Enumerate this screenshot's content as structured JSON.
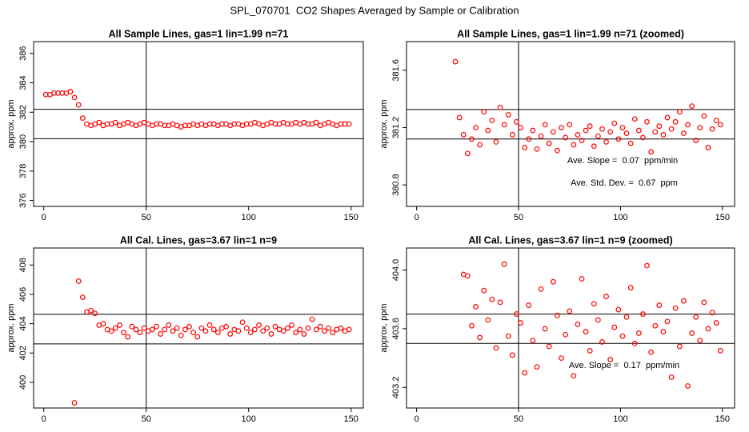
{
  "title": "SPL_070701  CO2 Shapes Averaged by Sample or Calibration",
  "chart_data": [
    {
      "type": "scatter",
      "title": "All Sample Lines, gas=1 lin=1.99 n=71",
      "y_label": "approx. ppm",
      "color": "#ff0000",
      "xlim": [
        -4.96,
        155.96
      ],
      "xticks": [
        0,
        50,
        100,
        150
      ],
      "ylim": [
        375.6,
        386.8
      ],
      "yticks": [
        376,
        378,
        380,
        382,
        384,
        386
      ],
      "vline": 50,
      "hlines": [
        382.2,
        380.2
      ],
      "annotations": [],
      "x": [
        1,
        3,
        5,
        7,
        9,
        11,
        13,
        15,
        17,
        19,
        21,
        23,
        25,
        27,
        29,
        31,
        33,
        35,
        37,
        39,
        41,
        43,
        45,
        47,
        49,
        51,
        53,
        55,
        57,
        59,
        61,
        63,
        65,
        67,
        69,
        71,
        73,
        75,
        77,
        79,
        81,
        83,
        85,
        87,
        89,
        91,
        93,
        95,
        97,
        99,
        101,
        103,
        105,
        107,
        109,
        111,
        113,
        115,
        117,
        119,
        121,
        123,
        125,
        127,
        129,
        131,
        133,
        135,
        137,
        139,
        141,
        143,
        145,
        147,
        149
      ],
      "values": [
        383.2,
        383.2,
        383.3,
        383.3,
        383.3,
        383.3,
        383.4,
        383.0,
        382.5,
        381.6,
        381.2,
        381.1,
        381.2,
        381.3,
        381.1,
        381.2,
        381.2,
        381.3,
        381.1,
        381.2,
        381.3,
        381.2,
        381.1,
        381.2,
        381.3,
        381.2,
        381.1,
        381.2,
        381.2,
        381.1,
        381.1,
        381.2,
        381.1,
        381.0,
        381.1,
        381.1,
        381.2,
        381.1,
        381.2,
        381.1,
        381.2,
        381.2,
        381.1,
        381.2,
        381.2,
        381.1,
        381.2,
        381.2,
        381.1,
        381.2,
        381.2,
        381.3,
        381.2,
        381.1,
        381.2,
        381.3,
        381.2,
        381.2,
        381.3,
        381.2,
        381.2,
        381.3,
        381.2,
        381.3,
        381.2,
        381.2,
        381.3,
        381.1,
        381.2,
        381.3,
        381.2,
        381.1,
        381.2,
        381.2,
        381.2
      ]
    },
    {
      "type": "scatter",
      "title": "All Sample Lines, gas=1 lin=1.99 n=71 (zoomed)",
      "y_label": "approx. ppm",
      "color": "#ff0000",
      "xlim": [
        -4.96,
        155.96
      ],
      "xticks": [
        0,
        50,
        100,
        150
      ],
      "ylim": [
        380.65,
        381.8
      ],
      "yticks": [
        380.8,
        381.2,
        381.6
      ],
      "vline": 50,
      "hlines": [
        381.326,
        381.12
      ],
      "annotations": [
        "Ave. Slope =  0.07  ppm/min",
        "Ave. Std. Dev. =  0.67  ppm"
      ],
      "x": [
        19,
        21,
        23,
        25,
        27,
        29,
        31,
        33,
        35,
        37,
        39,
        41,
        43,
        45,
        47,
        49,
        51,
        53,
        55,
        57,
        59,
        61,
        63,
        65,
        67,
        69,
        71,
        73,
        75,
        77,
        79,
        81,
        83,
        85,
        87,
        89,
        91,
        93,
        95,
        97,
        99,
        101,
        103,
        105,
        107,
        109,
        111,
        113,
        115,
        117,
        119,
        121,
        123,
        125,
        127,
        129,
        131,
        133,
        135,
        137,
        139,
        141,
        143,
        145,
        147,
        149
      ],
      "values": [
        381.66,
        381.27,
        381.15,
        381.02,
        381.12,
        381.2,
        381.08,
        381.31,
        381.18,
        381.25,
        381.1,
        381.34,
        381.22,
        381.29,
        381.15,
        381.24,
        381.2,
        381.06,
        381.12,
        381.18,
        381.05,
        381.14,
        381.22,
        381.09,
        381.17,
        381.04,
        381.2,
        381.13,
        381.22,
        381.08,
        381.15,
        381.11,
        381.18,
        381.21,
        381.07,
        381.14,
        381.19,
        381.1,
        381.17,
        381.23,
        381.12,
        381.2,
        381.16,
        381.09,
        381.26,
        381.18,
        381.13,
        381.24,
        381.03,
        381.17,
        381.21,
        381.15,
        381.27,
        381.19,
        381.24,
        381.31,
        381.16,
        381.22,
        381.35,
        381.11,
        381.2,
        381.28,
        381.06,
        381.19,
        381.25,
        381.22
      ]
    },
    {
      "type": "scatter",
      "title": "All Cal. Lines, gas=3.67 lin=1 n=9",
      "y_label": "approx. ppm",
      "color": "#ff0000",
      "xlim": [
        -4.96,
        155.96
      ],
      "xticks": [
        0,
        50,
        100,
        150
      ],
      "ylim": [
        398.25,
        409.16
      ],
      "yticks": [
        400,
        402,
        404,
        406,
        408
      ],
      "vline": 50,
      "hlines": [
        404.64,
        402.62
      ],
      "annotations": [],
      "x": [
        15,
        17,
        19,
        21,
        23,
        25,
        27,
        29,
        31,
        33,
        35,
        37,
        39,
        41,
        43,
        45,
        47,
        49,
        51,
        53,
        55,
        57,
        59,
        61,
        63,
        65,
        67,
        69,
        71,
        73,
        75,
        77,
        79,
        81,
        83,
        85,
        87,
        89,
        91,
        93,
        95,
        97,
        99,
        101,
        103,
        105,
        107,
        109,
        111,
        113,
        115,
        117,
        119,
        121,
        123,
        125,
        127,
        129,
        131,
        133,
        135,
        137,
        139,
        141,
        143,
        145,
        147,
        149
      ],
      "values": [
        398.6,
        406.9,
        405.8,
        404.8,
        404.9,
        404.7,
        403.9,
        404.0,
        403.6,
        403.5,
        403.7,
        403.9,
        403.4,
        403.1,
        403.8,
        403.6,
        403.4,
        403.7,
        403.5,
        403.6,
        403.8,
        403.3,
        403.6,
        403.9,
        403.5,
        403.7,
        403.2,
        403.6,
        403.8,
        403.4,
        403.1,
        403.7,
        403.5,
        403.9,
        403.6,
        403.4,
        403.7,
        403.8,
        403.3,
        403.6,
        403.5,
        404.1,
        403.7,
        403.4,
        403.6,
        403.9,
        403.5,
        403.7,
        403.3,
        403.8,
        403.6,
        403.5,
        403.7,
        403.9,
        403.4,
        403.6,
        403.3,
        403.7,
        404.3,
        403.6,
        403.8,
        403.5,
        403.7,
        403.4,
        403.6,
        403.7,
        403.5,
        403.6
      ]
    },
    {
      "type": "scatter",
      "title": "All Cal. Lines, gas=3.67 lin=1 n=9 (zoomed)",
      "y_label": "approx. ppm",
      "color": "#ff0000",
      "xlim": [
        -4.96,
        155.96
      ],
      "xticks": [
        0,
        50,
        100,
        150
      ],
      "ylim": [
        403.06,
        404.15
      ],
      "yticks": [
        403.2,
        403.6,
        {
          "value": 404,
          "label": "404.0"
        }
      ],
      "vline": 50,
      "hlines": [
        403.7,
        403.5
      ],
      "annotations": [
        "Ave. Slope =  0.17  ppm/min"
      ],
      "x": [
        23,
        25,
        27,
        29,
        31,
        33,
        35,
        37,
        39,
        41,
        43,
        45,
        47,
        49,
        51,
        53,
        55,
        57,
        59,
        61,
        63,
        65,
        67,
        69,
        71,
        73,
        75,
        77,
        79,
        81,
        83,
        85,
        87,
        89,
        91,
        93,
        95,
        97,
        99,
        101,
        103,
        105,
        107,
        109,
        111,
        113,
        115,
        117,
        119,
        121,
        123,
        125,
        127,
        129,
        131,
        133,
        135,
        137,
        139,
        141,
        143,
        145,
        147,
        149
      ],
      "values": [
        403.97,
        403.96,
        403.62,
        403.75,
        403.54,
        403.86,
        403.66,
        403.8,
        403.47,
        403.78,
        404.04,
        403.55,
        403.42,
        403.7,
        403.64,
        403.3,
        403.76,
        403.52,
        403.34,
        403.87,
        403.6,
        403.48,
        403.92,
        403.69,
        403.4,
        403.56,
        403.72,
        403.28,
        403.63,
        403.94,
        403.58,
        403.45,
        403.77,
        403.66,
        403.51,
        403.82,
        403.39,
        403.61,
        403.73,
        403.55,
        403.68,
        403.88,
        403.5,
        403.57,
        403.7,
        404.03,
        403.44,
        403.62,
        403.76,
        403.58,
        403.65,
        403.27,
        403.74,
        403.48,
        403.79,
        403.21,
        403.57,
        403.68,
        403.52,
        403.78,
        403.6,
        403.71,
        403.64,
        403.45
      ]
    }
  ]
}
